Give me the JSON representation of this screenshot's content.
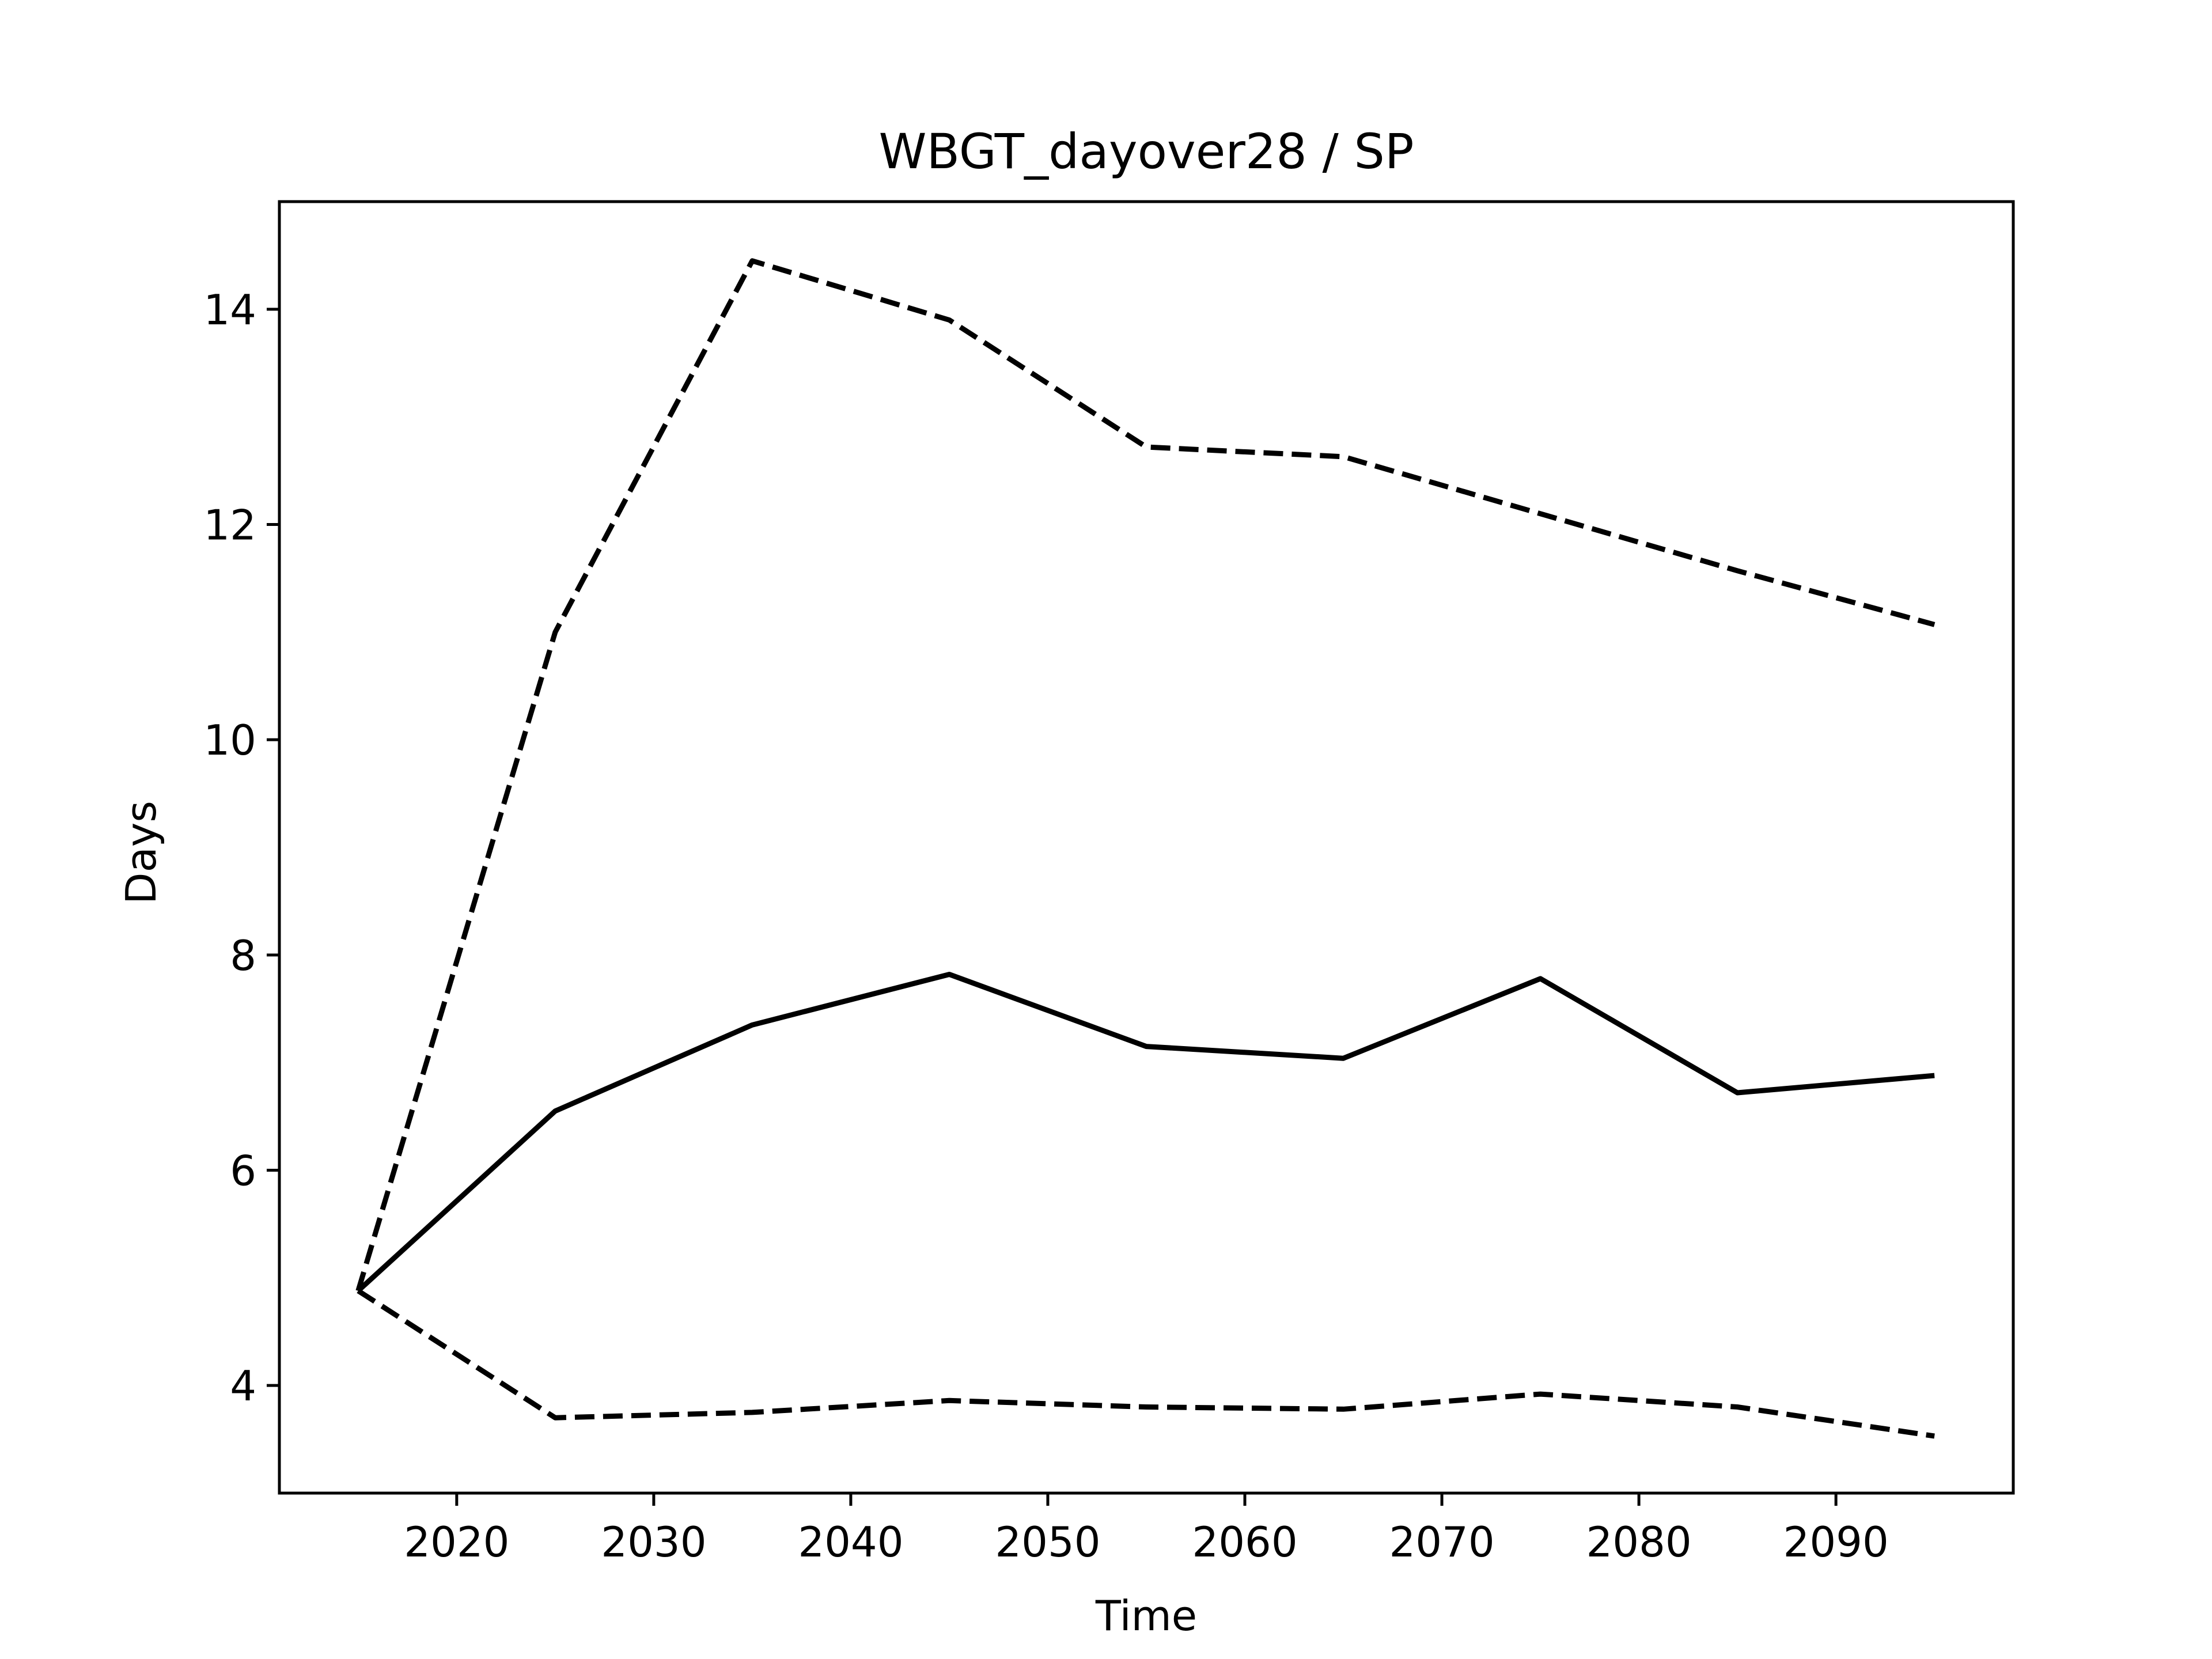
{
  "chart_data": {
    "type": "line",
    "title": "WBGT_dayover28 / SP",
    "xlabel": "Time",
    "ylabel": "Days",
    "xlim": [
      2011,
      2099
    ],
    "ylim": [
      3,
      15
    ],
    "x_ticks": [
      2020,
      2030,
      2040,
      2050,
      2060,
      2070,
      2080,
      2090
    ],
    "y_ticks": [
      4,
      6,
      8,
      10,
      12,
      14
    ],
    "grid": false,
    "line_color": "#000000",
    "x": [
      2015,
      2025,
      2035,
      2045,
      2055,
      2065,
      2075,
      2085,
      2095
    ],
    "series": [
      {
        "style": "solid",
        "values": [
          4.88,
          6.55,
          7.35,
          7.82,
          7.15,
          7.04,
          7.78,
          6.72,
          6.88
        ]
      },
      {
        "style": "dashed",
        "values": [
          4.88,
          11.0,
          14.45,
          13.9,
          12.72,
          12.63,
          12.1,
          11.57,
          11.07
        ]
      },
      {
        "style": "dashed",
        "values": [
          4.88,
          3.7,
          3.75,
          3.86,
          3.8,
          3.78,
          3.92,
          3.8,
          3.53
        ]
      }
    ]
  }
}
